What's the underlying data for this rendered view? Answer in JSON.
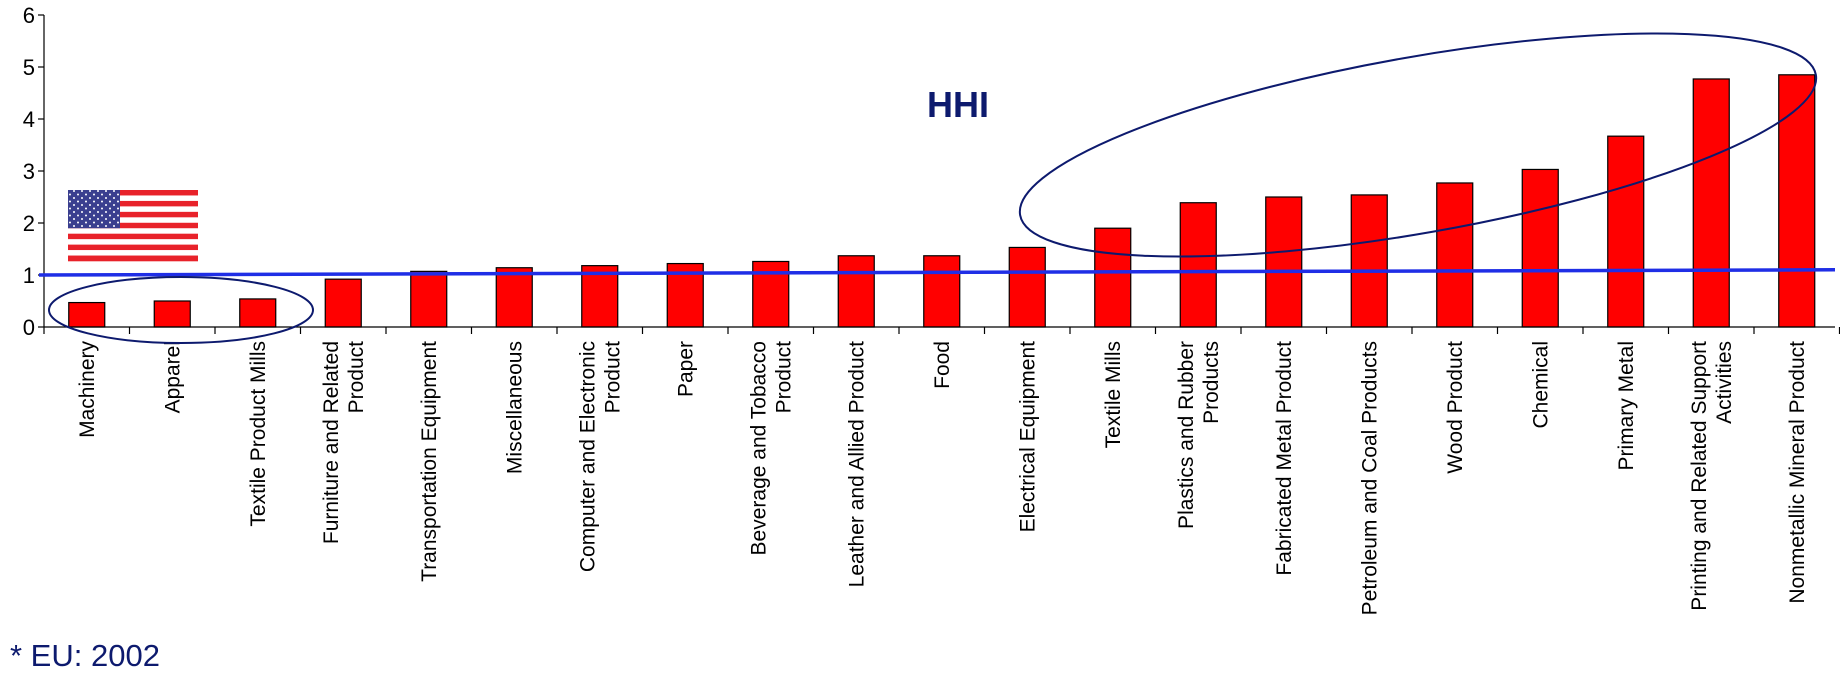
{
  "chart_data": {
    "type": "bar",
    "categories": [
      "Machinery",
      "Apparel",
      "Textile Product Mills",
      "Furniture and Related Product",
      "Transportation Equipment",
      "Miscellaneous",
      "Computer and Electronic Product",
      "Paper",
      "Beverage and Tobacco Product",
      "Leather and Allied Product",
      "Food",
      "Electrical Equipment",
      "Textile Mills",
      "Plastics and Rubber Products",
      "Fabricated Metal Product",
      "Petroleum and Coal Products",
      "Wood Product",
      "Chemical",
      "Primary Metal",
      "Printing and Related Support Activities",
      "Nonmetallic Mineral Product"
    ],
    "category_lines": [
      [
        "Machinery"
      ],
      [
        "Apparel"
      ],
      [
        "Textile Product Mills"
      ],
      [
        "Furniture and Related",
        "Product"
      ],
      [
        "Transportation Equipment"
      ],
      [
        "Miscellaneous"
      ],
      [
        "Computer and Electronic",
        "Product"
      ],
      [
        "Paper"
      ],
      [
        "Beverage and Tobacco",
        "Product"
      ],
      [
        "Leather and Allied Product"
      ],
      [
        "Food"
      ],
      [
        "Electrical Equipment"
      ],
      [
        "Textile Mills"
      ],
      [
        "Plastics and Rubber",
        "Products"
      ],
      [
        "Fabricated Metal Product"
      ],
      [
        "Petroleum and Coal Products"
      ],
      [
        "Wood Product"
      ],
      [
        "Chemical"
      ],
      [
        "Primary Metal"
      ],
      [
        "Printing and Related Support",
        "Activities"
      ],
      [
        "Nonmetallic Mineral Product"
      ]
    ],
    "values": [
      0.47,
      0.5,
      0.54,
      0.92,
      1.07,
      1.14,
      1.18,
      1.22,
      1.26,
      1.37,
      1.37,
      1.53,
      1.9,
      2.39,
      2.5,
      2.54,
      2.77,
      3.03,
      3.67,
      4.77,
      4.85
    ],
    "reference_line": {
      "value_start": 1.0,
      "value_end": 1.1,
      "color": "#1f2ee6"
    },
    "ylim": [
      0,
      6
    ],
    "yticks": [
      0,
      1,
      2,
      3,
      4,
      5,
      6
    ],
    "bar_color": "#ff0000",
    "annotation_text": "HHI",
    "annotation_color": "#0d1a6e",
    "ellipse_color": "#0d1a6e",
    "footnote": "* EU: 2002",
    "flag_icon": "us-flag-icon",
    "title": "",
    "xlabel": "",
    "ylabel": ""
  }
}
